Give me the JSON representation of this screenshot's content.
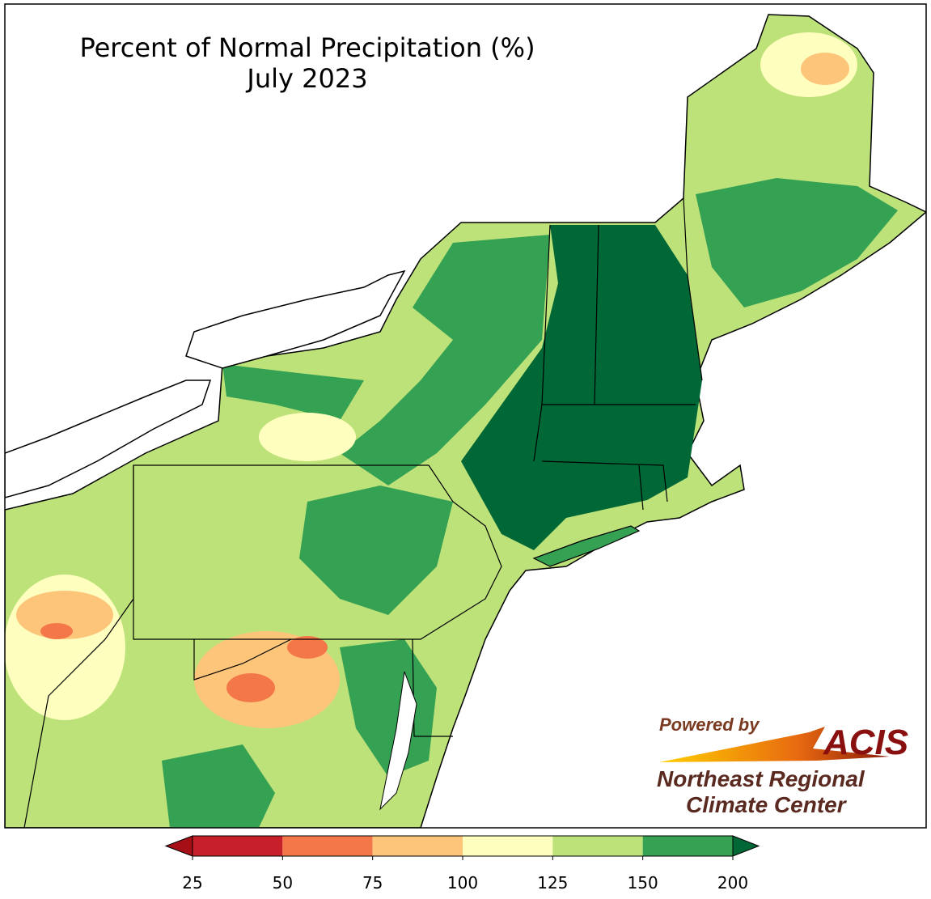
{
  "title": "Percent of Normal Precipitation (%)",
  "subtitle": "July 2023",
  "colorbar": {
    "ticks": [
      25,
      50,
      75,
      100,
      125,
      150,
      200
    ],
    "colors": [
      "#a50f15",
      "#c8202a",
      "#f4774a",
      "#fdc57a",
      "#fefebe",
      "#bde27a",
      "#35a153",
      "#006837"
    ]
  },
  "logo": {
    "powered_by": "Powered by",
    "acis": "ACIS",
    "line1": "Northeast Regional",
    "line2": "Climate Center"
  }
}
